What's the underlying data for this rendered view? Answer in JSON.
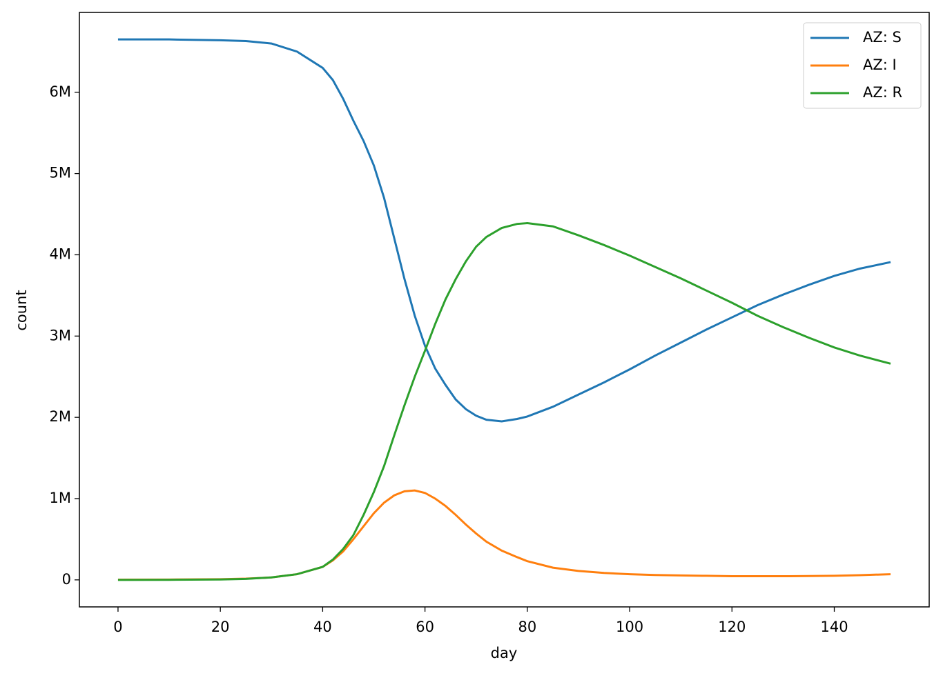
{
  "chart_data": {
    "type": "line",
    "xlabel": "day",
    "ylabel": "count",
    "x": [
      0,
      10,
      20,
      25,
      30,
      35,
      40,
      42,
      44,
      46,
      48,
      50,
      52,
      54,
      56,
      58,
      60,
      62,
      64,
      66,
      68,
      70,
      72,
      75,
      78,
      80,
      85,
      90,
      95,
      100,
      105,
      110,
      115,
      120,
      125,
      130,
      135,
      140,
      145,
      151
    ],
    "series": [
      {
        "name": "AZ: S",
        "color": "#1f77b4",
        "values": [
          6650000,
          6650000,
          6640000,
          6630000,
          6600000,
          6500000,
          6300000,
          6150000,
          5920000,
          5650000,
          5400000,
          5100000,
          4700000,
          4200000,
          3700000,
          3250000,
          2880000,
          2600000,
          2400000,
          2220000,
          2100000,
          2020000,
          1970000,
          1950000,
          1980000,
          2010000,
          2130000,
          2280000,
          2430000,
          2590000,
          2760000,
          2920000,
          3080000,
          3230000,
          3380000,
          3510000,
          3630000,
          3740000,
          3830000,
          3910000
        ]
      },
      {
        "name": "AZ: I",
        "color": "#ff7f0e",
        "values": [
          3000,
          4000,
          8000,
          15000,
          30000,
          70000,
          160000,
          240000,
          350000,
          500000,
          660000,
          820000,
          950000,
          1040000,
          1090000,
          1100000,
          1070000,
          1000000,
          910000,
          800000,
          680000,
          570000,
          470000,
          360000,
          280000,
          230000,
          150000,
          110000,
          85000,
          70000,
          60000,
          55000,
          50000,
          45000,
          45000,
          45000,
          47000,
          50000,
          58000,
          70000
        ]
      },
      {
        "name": "AZ: R",
        "color": "#2ca02c",
        "values": [
          0,
          1000,
          5000,
          12000,
          30000,
          70000,
          160000,
          250000,
          380000,
          550000,
          800000,
          1080000,
          1400000,
          1780000,
          2150000,
          2500000,
          2820000,
          3150000,
          3450000,
          3700000,
          3920000,
          4100000,
          4220000,
          4330000,
          4380000,
          4390000,
          4350000,
          4240000,
          4120000,
          3990000,
          3850000,
          3710000,
          3560000,
          3410000,
          3250000,
          3110000,
          2980000,
          2860000,
          2760000,
          2660000
        ]
      }
    ],
    "xlim": [
      -7.55,
      158.55
    ],
    "xticks": [
      0,
      20,
      40,
      60,
      80,
      100,
      120,
      140
    ],
    "ylim": [
      -332500,
      6982500
    ],
    "yticks": [
      0,
      {
        "value": 1000000,
        "label": "1M"
      },
      {
        "value": 2000000,
        "label": "2M"
      },
      {
        "value": 3000000,
        "label": "3M"
      },
      {
        "value": 4000000,
        "label": "4M"
      },
      {
        "value": 5000000,
        "label": "5M"
      },
      {
        "value": 6000000,
        "label": "6M"
      }
    ],
    "legend": "upper right"
  }
}
